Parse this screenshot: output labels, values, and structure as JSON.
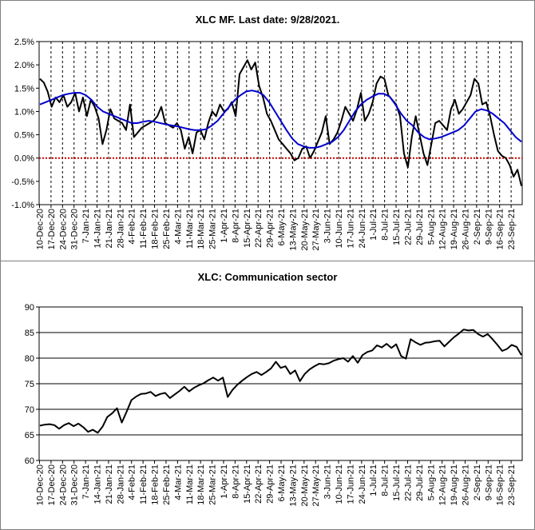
{
  "chart_data": [
    {
      "type": "line",
      "title": "XLC MF. Last date: 9/28/2021.",
      "ylim": [
        -1.0,
        2.5
      ],
      "yticks": [
        "2.5%",
        "2.0%",
        "1.5%",
        "1.0%",
        "0.5%",
        "0.0%",
        "-0.5%",
        "-1.0%"
      ],
      "xticks": [
        "10-Dec-20",
        "17-Dec-20",
        "24-Dec-20",
        "31-Dec-20",
        "7-Jan-21",
        "14-Jan-21",
        "21-Jan-21",
        "28-Jan-21",
        "4-Feb-21",
        "11-Feb-21",
        "18-Feb-21",
        "25-Feb-21",
        "4-Mar-21",
        "11-Mar-21",
        "18-Mar-21",
        "25-Mar-21",
        "1-Apr-21",
        "8-Apr-21",
        "15-Apr-21",
        "22-Apr-21",
        "29-Apr-21",
        "6-May-21",
        "13-May-21",
        "20-May-21",
        "27-May-21",
        "3-Jun-21",
        "10-Jun-21",
        "17-Jun-21",
        "24-Jun-21",
        "1-Jul-21",
        "8-Jul-21",
        "15-Jul-21",
        "22-Jul-21",
        "29-Jul-21",
        "5-Aug-21",
        "12-Aug-21",
        "19-Aug-21",
        "26-Aug-21",
        "2-Sep-21",
        "9-Sep-21",
        "16-Sep-21",
        "23-Sep-21"
      ],
      "grid": "vertical dashed",
      "zero_line_color": "#cc0000",
      "series": [
        {
          "color": "#000000",
          "values": [
            1.7,
            1.62,
            1.42,
            1.1,
            1.3,
            1.2,
            1.35,
            1.1,
            1.2,
            1.4,
            1.0,
            1.3,
            0.9,
            1.25,
            1.1,
            0.85,
            0.3,
            0.6,
            1.05,
            0.85,
            0.8,
            0.75,
            0.6,
            1.15,
            0.45,
            0.55,
            0.65,
            0.7,
            0.75,
            0.8,
            0.9,
            1.1,
            0.75,
            0.7,
            0.65,
            0.75,
            0.6,
            0.2,
            0.45,
            0.1,
            0.55,
            0.6,
            0.4,
            0.75,
            1.0,
            0.9,
            1.15,
            1.0,
            1.05,
            1.2,
            0.9,
            1.8,
            1.95,
            2.1,
            1.9,
            2.05,
            1.55,
            1.3,
            0.95,
            0.8,
            0.6,
            0.4,
            0.3,
            0.2,
            0.1,
            -0.05,
            0.0,
            0.2,
            0.25,
            0.0,
            0.15,
            0.35,
            0.55,
            0.9,
            0.3,
            0.4,
            0.55,
            0.8,
            1.1,
            0.95,
            0.8,
            1.05,
            1.4,
            0.8,
            0.95,
            1.2,
            1.6,
            1.75,
            1.7,
            1.35,
            1.25,
            1.15,
            0.9,
            0.1,
            -0.2,
            0.45,
            0.9,
            0.5,
            0.1,
            -0.15,
            0.3,
            0.75,
            0.8,
            0.7,
            0.6,
            1.05,
            1.25,
            0.95,
            1.05,
            1.2,
            1.35,
            1.7,
            1.6,
            1.15,
            1.2,
            0.9,
            0.5,
            0.15,
            0.05,
            0.0,
            -0.15,
            -0.4,
            -0.25,
            -0.6
          ]
        },
        {
          "color": "#0000cc",
          "values": [
            1.15,
            1.2,
            1.25,
            1.3,
            1.35,
            1.38,
            1.4,
            1.4,
            1.35,
            1.25,
            1.1,
            1.0,
            0.95,
            0.9,
            0.85,
            0.8,
            0.75,
            0.75,
            0.78,
            0.8,
            0.78,
            0.75,
            0.72,
            0.7,
            0.68,
            0.65,
            0.62,
            0.6,
            0.6,
            0.62,
            0.7,
            0.8,
            0.95,
            1.1,
            1.25,
            1.35,
            1.43,
            1.45,
            1.42,
            1.35,
            1.2,
            1.0,
            0.8,
            0.6,
            0.42,
            0.3,
            0.25,
            0.22,
            0.22,
            0.25,
            0.3,
            0.35,
            0.45,
            0.6,
            0.8,
            1.0,
            1.15,
            1.25,
            1.32,
            1.38,
            1.38,
            1.32,
            1.15,
            0.95,
            0.8,
            0.7,
            0.55,
            0.45,
            0.4,
            0.42,
            0.45,
            0.5,
            0.55,
            0.6,
            0.7,
            0.85,
            1.0,
            1.05,
            1.02,
            0.95,
            0.85,
            0.75,
            0.6,
            0.45,
            0.35
          ]
        }
      ]
    },
    {
      "type": "line",
      "title": "XLC: Communication sector",
      "ylim": [
        60,
        90
      ],
      "yticks": [
        "90",
        "85",
        "80",
        "75",
        "70",
        "65",
        "60"
      ],
      "xticks": [
        "10-Dec-20",
        "17-Dec-20",
        "24-Dec-20",
        "31-Dec-20",
        "7-Jan-21",
        "14-Jan-21",
        "21-Jan-21",
        "28-Jan-21",
        "4-Feb-21",
        "11-Feb-21",
        "18-Feb-21",
        "25-Feb-21",
        "4-Mar-21",
        "11-Mar-21",
        "18-Mar-21",
        "25-Mar-21",
        "1-Apr-21",
        "8-Apr-21",
        "15-Apr-21",
        "22-Apr-21",
        "29-Apr-21",
        "6-May-21",
        "13-May-21",
        "20-May-21",
        "27-May-21",
        "3-Jun-21",
        "10-Jun-21",
        "17-Jun-21",
        "24-Jun-21",
        "1-Jul-21",
        "8-Jul-21",
        "15-Jul-21",
        "22-Jul-21",
        "29-Jul-21",
        "5-Aug-21",
        "12-Aug-21",
        "19-Aug-21",
        "26-Aug-21",
        "2-Sep-21",
        "9-Sep-21",
        "16-Sep-21",
        "23-Sep-21"
      ],
      "grid": "horizontal solid",
      "series": [
        {
          "color": "#000000",
          "values": [
            66.8,
            67.0,
            67.1,
            66.9,
            66.2,
            66.9,
            67.3,
            66.7,
            67.2,
            66.5,
            65.6,
            66.0,
            65.4,
            66.6,
            68.5,
            69.2,
            70.2,
            67.4,
            69.5,
            71.8,
            72.5,
            73.0,
            73.1,
            73.4,
            72.6,
            73.0,
            73.2,
            72.2,
            72.9,
            73.6,
            74.4,
            73.5,
            74.2,
            74.7,
            75.1,
            75.7,
            76.2,
            75.6,
            76.2,
            72.4,
            73.8,
            74.8,
            75.6,
            76.3,
            76.9,
            77.3,
            76.7,
            77.3,
            78.0,
            79.3,
            78.1,
            78.4,
            76.9,
            77.6,
            75.5,
            76.9,
            77.8,
            78.4,
            78.9,
            78.8,
            79.0,
            79.5,
            79.8,
            80.0,
            79.3,
            80.4,
            79.1,
            80.6,
            81.2,
            81.5,
            82.5,
            82.1,
            82.8,
            82.0,
            82.7,
            80.4,
            79.9,
            83.7,
            83.1,
            82.6,
            83.0,
            83.1,
            83.3,
            83.4,
            82.3,
            83.2,
            84.1,
            84.8,
            85.6,
            85.4,
            85.5,
            84.7,
            84.2,
            84.7,
            83.7,
            82.6,
            81.4,
            81.8,
            82.6,
            82.2,
            80.6
          ]
        }
      ]
    }
  ]
}
